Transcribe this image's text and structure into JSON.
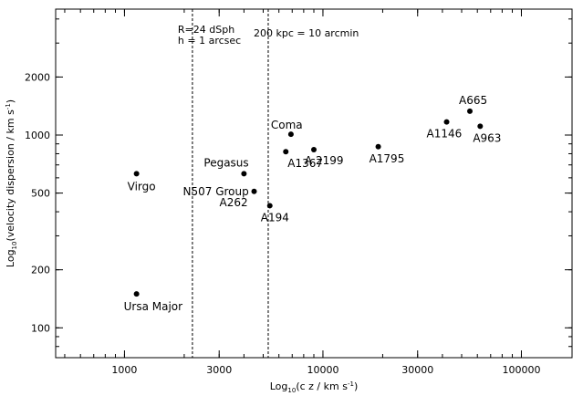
{
  "chart_data": {
    "type": "scatter",
    "title": "",
    "xlabel": "Log10(c z / km s^-1)",
    "ylabel": "Log10(velocity dispersion / km s^-1)",
    "xscale": "log",
    "yscale": "log",
    "xlim": [
      450,
      180000
    ],
    "ylim": [
      70,
      4500
    ],
    "grid": false,
    "x_tick_labels": [
      "1000",
      "3000",
      "10000",
      "30000",
      "100000"
    ],
    "x_ticks": [
      1000,
      3000,
      10000,
      30000,
      100000
    ],
    "y_tick_labels": [
      "100",
      "200",
      "500",
      "1000",
      "2000"
    ],
    "y_ticks": [
      100,
      200,
      500,
      1000,
      2000
    ],
    "points": [
      {
        "label": "Virgo",
        "x": 1150,
        "y": 630
      },
      {
        "label": "Ursa Major",
        "x": 1150,
        "y": 150
      },
      {
        "label": "Pegasus",
        "x": 4000,
        "y": 630
      },
      {
        "label": "N507 Group",
        "x": 4500,
        "y": 510
      },
      {
        "label": "A194",
        "x": 5400,
        "y": 430
      },
      {
        "label": "Coma",
        "x": 6900,
        "y": 1010
      },
      {
        "label": "A1367",
        "x": 6500,
        "y": 820
      },
      {
        "label": "A 2199",
        "x": 9000,
        "y": 840
      },
      {
        "label": "A1795",
        "x": 19000,
        "y": 870
      },
      {
        "label": "A1146",
        "x": 42000,
        "y": 1170
      },
      {
        "label": "A665",
        "x": 55000,
        "y": 1330
      },
      {
        "label": "A963",
        "x": 62000,
        "y": 1110
      }
    ],
    "extra_labels": [
      "A262"
    ],
    "vlines": [
      {
        "x": 2200,
        "label_lines": [
          "R=24 dSph",
          "h = 1 arcsec"
        ]
      },
      {
        "x": 5300,
        "label_lines": [
          "200 kpc = 10 arcmin"
        ]
      }
    ]
  }
}
